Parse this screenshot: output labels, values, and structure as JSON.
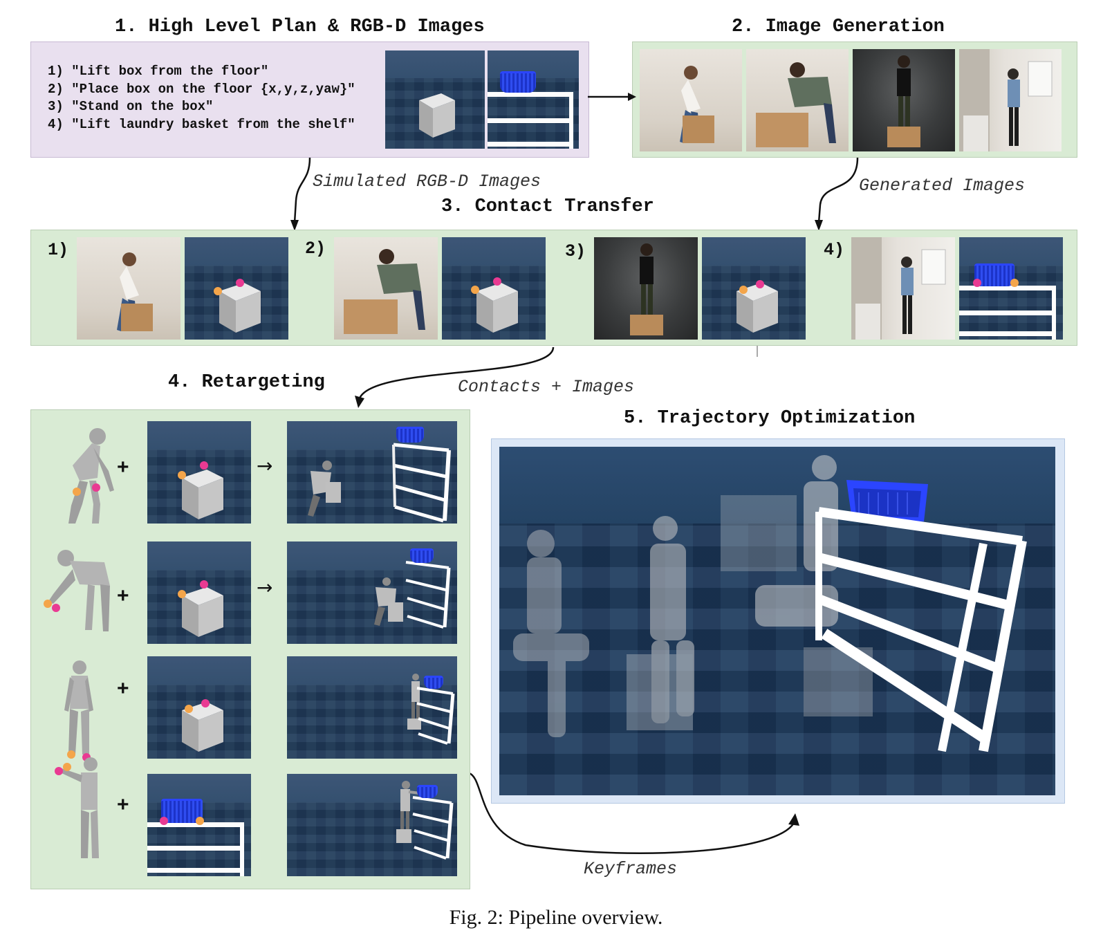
{
  "sections": {
    "plan": {
      "title": "1. High Level Plan & RGB-D Images"
    },
    "generation": {
      "title": "2. Image Generation"
    },
    "contact": {
      "title": "3. Contact Transfer"
    },
    "retarget": {
      "title": "4. Retargeting"
    },
    "trajectory": {
      "title": "5. Trajectory Optimization"
    }
  },
  "plan_lines": [
    "1) \"Lift box from the floor\"",
    "2) \"Place box on the floor {x,y,z,yaw}\"",
    "3) \"Stand on the box\"",
    "4) \"Lift laundry basket from the shelf\""
  ],
  "contact_labels": [
    "1)",
    "2)",
    "3)",
    "4)"
  ],
  "arrow_labels": {
    "simulated": "Simulated RGB-D Images",
    "generated": "Generated Images",
    "contacts_images": "Contacts + Images",
    "keyframes": "Keyframes"
  },
  "retarget_symbols": {
    "plus": "+",
    "arrow": "→"
  },
  "caption": "Fig. 2: Pipeline overview.",
  "colors": {
    "plan_bg": "#e9e0ef",
    "panel_bg": "#d9ebd4",
    "traj_bg": "#dce7f6",
    "contact_pink": "#e93a92",
    "contact_orange": "#f4a54a",
    "basket_blue": "#2b45ff"
  }
}
